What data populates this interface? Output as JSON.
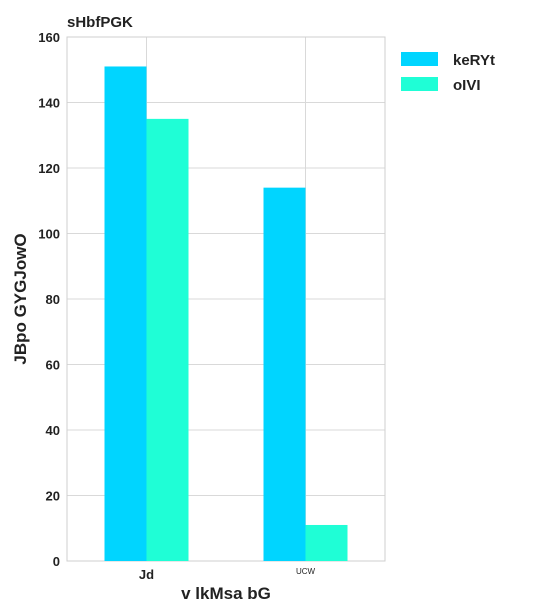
{
  "chart_data": {
    "type": "bar",
    "title": "sHbfPGK",
    "xlabel": "v lkMsa bG",
    "ylabel": "JBpo GYGJowO",
    "categories": [
      "Jd",
      "UCW"
    ],
    "category_label_sizes": [
      "normal",
      "small"
    ],
    "series": [
      {
        "name": "keRYt",
        "values": [
          151,
          114
        ],
        "color": "#00d5ff"
      },
      {
        "name": "oIVI",
        "values": [
          135,
          11
        ],
        "color": "#1ffed6"
      }
    ],
    "ylim": [
      0,
      160
    ],
    "yticks": [
      0,
      20,
      40,
      60,
      80,
      100,
      120,
      140,
      160
    ],
    "grid": true,
    "legend_position": "top-right"
  }
}
